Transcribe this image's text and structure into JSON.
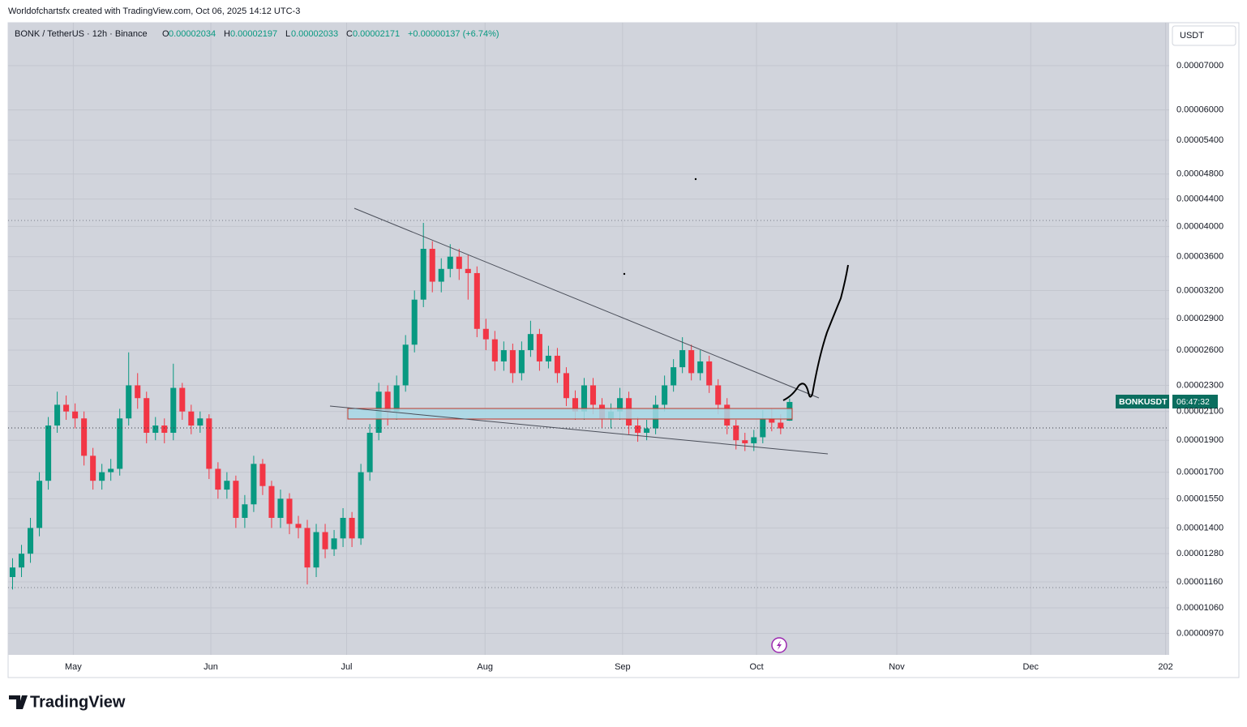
{
  "header": {
    "credit": "Worldofchartsfx created with TradingView.com, Oct 06, 2025 14:12 UTC-3",
    "symbol": "BONK / TetherUS · 12h · Binance",
    "o_label": "O",
    "o": "0.00002034",
    "h_label": "H",
    "h": "0.00002197",
    "l_label": "L",
    "l": "0.00002033",
    "c_label": "C",
    "c": "0.00002171",
    "change": "+0.00000137 (+6.74%)",
    "currency": "USDT",
    "price_tag": "BONKUSDT",
    "countdown": "06:47:32",
    "logo": "TradingView"
  },
  "chart_data": {
    "type": "candlestick",
    "log_scale": true,
    "grid": true,
    "up_color": "#089981",
    "down_color": "#f23645",
    "xlim": [
      0,
      130
    ],
    "xticks": [
      {
        "value": 7.3,
        "label": "May"
      },
      {
        "value": 22.7,
        "label": "Jun"
      },
      {
        "value": 37.9,
        "label": "Jul"
      },
      {
        "value": 53.4,
        "label": "Aug"
      },
      {
        "value": 68.8,
        "label": "Sep"
      },
      {
        "value": 83.8,
        "label": "Oct"
      },
      {
        "value": 99.5,
        "label": "Nov"
      },
      {
        "value": 114.5,
        "label": "Dec"
      },
      {
        "value": 129.6,
        "label": "202"
      }
    ],
    "ylim": [
      9e-06,
      8.13e-05
    ],
    "yticks": [
      {
        "value": 7e-05,
        "label": "0.00007000"
      },
      {
        "value": 6e-05,
        "label": "0.00006000"
      },
      {
        "value": 5.4e-05,
        "label": "0.00005400"
      },
      {
        "value": 4.8e-05,
        "label": "0.00004800"
      },
      {
        "value": 4.4e-05,
        "label": "0.00004400"
      },
      {
        "value": 4e-05,
        "label": "0.00004000"
      },
      {
        "value": 3.6e-05,
        "label": "0.00003600"
      },
      {
        "value": 3.2e-05,
        "label": "0.00003200"
      },
      {
        "value": 2.9e-05,
        "label": "0.00002900"
      },
      {
        "value": 2.6e-05,
        "label": "0.00002600"
      },
      {
        "value": 2.3e-05,
        "label": "0.00002300"
      },
      {
        "value": 2.1e-05,
        "label": "0.00002100"
      },
      {
        "value": 1.9e-05,
        "label": "0.00001900"
      },
      {
        "value": 1.7e-05,
        "label": "0.00001700"
      },
      {
        "value": 1.55e-05,
        "label": "0.00001550"
      },
      {
        "value": 1.4e-05,
        "label": "0.00001400"
      },
      {
        "value": 1.28e-05,
        "label": "0.00001280"
      },
      {
        "value": 1.16e-05,
        "label": "0.00001160"
      },
      {
        "value": 1.06e-05,
        "label": "0.00001060"
      },
      {
        "value": 9.7e-06,
        "label": "0.00000970"
      }
    ],
    "open": [
      1.18e-05,
      1.22e-05,
      1.28e-05,
      1.4e-05,
      1.65e-05,
      2e-05,
      2.15e-05,
      2.1e-05,
      2.05e-05,
      1.8e-05,
      1.65e-05,
      1.7e-05,
      1.72e-05,
      2.05e-05,
      2.3e-05,
      2.2e-05,
      1.95e-05,
      2e-05,
      1.95e-05,
      2.28e-05,
      2.1e-05,
      2e-05,
      2.05e-05,
      1.72e-05,
      1.6e-05,
      1.65e-05,
      1.45e-05,
      1.52e-05,
      1.75e-05,
      1.62e-05,
      1.45e-05,
      1.55e-05,
      1.42e-05,
      1.4e-05,
      1.22e-05,
      1.38e-05,
      1.3e-05,
      1.35e-05,
      1.45e-05,
      1.35e-05,
      1.7e-05,
      1.95e-05,
      2.25e-05,
      2.1e-05,
      2.3e-05,
      2.65e-05,
      3.1e-05,
      3.7e-05,
      3.3e-05,
      3.45e-05,
      3.6e-05,
      3.45e-05,
      3.4e-05,
      2.8e-05,
      2.7e-05,
      2.5e-05,
      2.6e-05,
      2.4e-05,
      2.6e-05,
      2.75e-05,
      2.5e-05,
      2.55e-05,
      2.4e-05,
      2.2e-05,
      2.1e-05,
      2.3e-05,
      2.15e-05,
      2.05e-05,
      2.1e-05,
      2.2e-05,
      2e-05,
      1.95e-05,
      1.98e-05,
      2.15e-05,
      2.3e-05,
      2.45e-05,
      2.6e-05,
      2.4e-05,
      2.5e-05,
      2.3e-05,
      2.15e-05,
      2e-05,
      1.9e-05,
      1.88e-05,
      1.92e-05,
      2.05e-05,
      2.02e-05,
      2.034e-05
    ],
    "high": [
      1.26e-05,
      1.32e-05,
      1.45e-05,
      1.7e-05,
      2.06e-05,
      2.25e-05,
      2.22e-05,
      2.16e-05,
      2.1e-05,
      1.85e-05,
      1.75e-05,
      1.78e-05,
      2.12e-05,
      2.58e-05,
      2.4e-05,
      2.25e-05,
      2.06e-05,
      2.05e-05,
      2.48e-05,
      2.32e-05,
      2.15e-05,
      2.1e-05,
      2.08e-05,
      1.76e-05,
      1.7e-05,
      1.68e-05,
      1.57e-05,
      1.8e-05,
      1.78e-05,
      1.65e-05,
      1.6e-05,
      1.58e-05,
      1.46e-05,
      1.44e-05,
      1.42e-05,
      1.42e-05,
      1.39e-05,
      1.5e-05,
      1.48e-05,
      1.75e-05,
      2.01e-05,
      2.32e-05,
      2.3e-05,
      2.38e-05,
      2.74e-05,
      3.2e-05,
      4.05e-05,
      3.8e-05,
      3.58e-05,
      3.76e-05,
      3.7e-05,
      3.62e-05,
      3.48e-05,
      2.9e-05,
      2.78e-05,
      2.68e-05,
      2.66e-05,
      2.68e-05,
      2.88e-05,
      2.8e-05,
      2.64e-05,
      2.62e-05,
      2.45e-05,
      2.26e-05,
      2.36e-05,
      2.36e-05,
      2.2e-05,
      2.16e-05,
      2.28e-05,
      2.25e-05,
      2.06e-05,
      2.04e-05,
      2.22e-05,
      2.38e-05,
      2.52e-05,
      2.72e-05,
      2.65e-05,
      2.6e-05,
      2.55e-05,
      2.35e-05,
      2.2e-05,
      2.04e-05,
      1.95e-05,
      1.97e-05,
      2.11e-05,
      2.12e-05,
      2.08e-05,
      2.197e-05
    ],
    "low": [
      1.13e-05,
      1.18e-05,
      1.24e-05,
      1.36e-05,
      1.6e-05,
      1.95e-05,
      2.04e-05,
      1.98e-05,
      1.74e-05,
      1.6e-05,
      1.6e-05,
      1.65e-05,
      1.68e-05,
      2e-05,
      2.12e-05,
      1.88e-05,
      1.9e-05,
      1.88e-05,
      1.9e-05,
      2.04e-05,
      1.94e-05,
      1.95e-05,
      1.66e-05,
      1.55e-05,
      1.55e-05,
      1.4e-05,
      1.4e-05,
      1.48e-05,
      1.57e-05,
      1.4e-05,
      1.4e-05,
      1.37e-05,
      1.35e-05,
      1.15e-05,
      1.18e-05,
      1.26e-05,
      1.27e-05,
      1.31e-05,
      1.31e-05,
      1.32e-05,
      1.65e-05,
      1.9e-05,
      2e-05,
      2.04e-05,
      2.25e-05,
      2.58e-05,
      3.02e-05,
      3.18e-05,
      3.18e-05,
      3.35e-05,
      3.32e-05,
      3.1e-05,
      2.72e-05,
      2.6e-05,
      2.42e-05,
      2.42e-05,
      2.32e-05,
      2.34e-05,
      2.54e-05,
      2.42e-05,
      2.44e-05,
      2.32e-05,
      2.14e-05,
      2.04e-05,
      2.04e-05,
      2.08e-05,
      1.98e-05,
      1.98e-05,
      2.04e-05,
      1.94e-05,
      1.89e-05,
      1.9e-05,
      1.94e-05,
      2.1e-05,
      2.25e-05,
      2.4e-05,
      2.34e-05,
      2.34e-05,
      2.24e-05,
      2.08e-05,
      1.94e-05,
      1.84e-05,
      1.83e-05,
      1.83e-05,
      1.88e-05,
      1.96e-05,
      1.94e-05,
      2.033e-05
    ],
    "close": [
      1.22e-05,
      1.28e-05,
      1.4e-05,
      1.65e-05,
      2e-05,
      2.15e-05,
      2.1e-05,
      2.05e-05,
      1.8e-05,
      1.65e-05,
      1.7e-05,
      1.72e-05,
      2.05e-05,
      2.3e-05,
      2.2e-05,
      1.95e-05,
      2e-05,
      1.95e-05,
      2.28e-05,
      2.1e-05,
      2e-05,
      2.05e-05,
      1.72e-05,
      1.6e-05,
      1.65e-05,
      1.45e-05,
      1.52e-05,
      1.75e-05,
      1.62e-05,
      1.45e-05,
      1.55e-05,
      1.42e-05,
      1.4e-05,
      1.22e-05,
      1.38e-05,
      1.3e-05,
      1.35e-05,
      1.45e-05,
      1.35e-05,
      1.7e-05,
      1.95e-05,
      2.25e-05,
      2.1e-05,
      2.3e-05,
      2.65e-05,
      3.1e-05,
      3.7e-05,
      3.3e-05,
      3.45e-05,
      3.6e-05,
      3.45e-05,
      3.4e-05,
      2.8e-05,
      2.7e-05,
      2.5e-05,
      2.6e-05,
      2.4e-05,
      2.6e-05,
      2.75e-05,
      2.5e-05,
      2.55e-05,
      2.4e-05,
      2.2e-05,
      2.1e-05,
      2.3e-05,
      2.15e-05,
      2.05e-05,
      2.1e-05,
      2.2e-05,
      2e-05,
      1.95e-05,
      1.98e-05,
      2.15e-05,
      2.3e-05,
      2.45e-05,
      2.6e-05,
      2.4e-05,
      2.5e-05,
      2.3e-05,
      2.15e-05,
      2e-05,
      1.9e-05,
      1.88e-05,
      1.92e-05,
      2.05e-05,
      2.02e-05,
      1.98e-05,
      2.171e-05
    ]
  }
}
